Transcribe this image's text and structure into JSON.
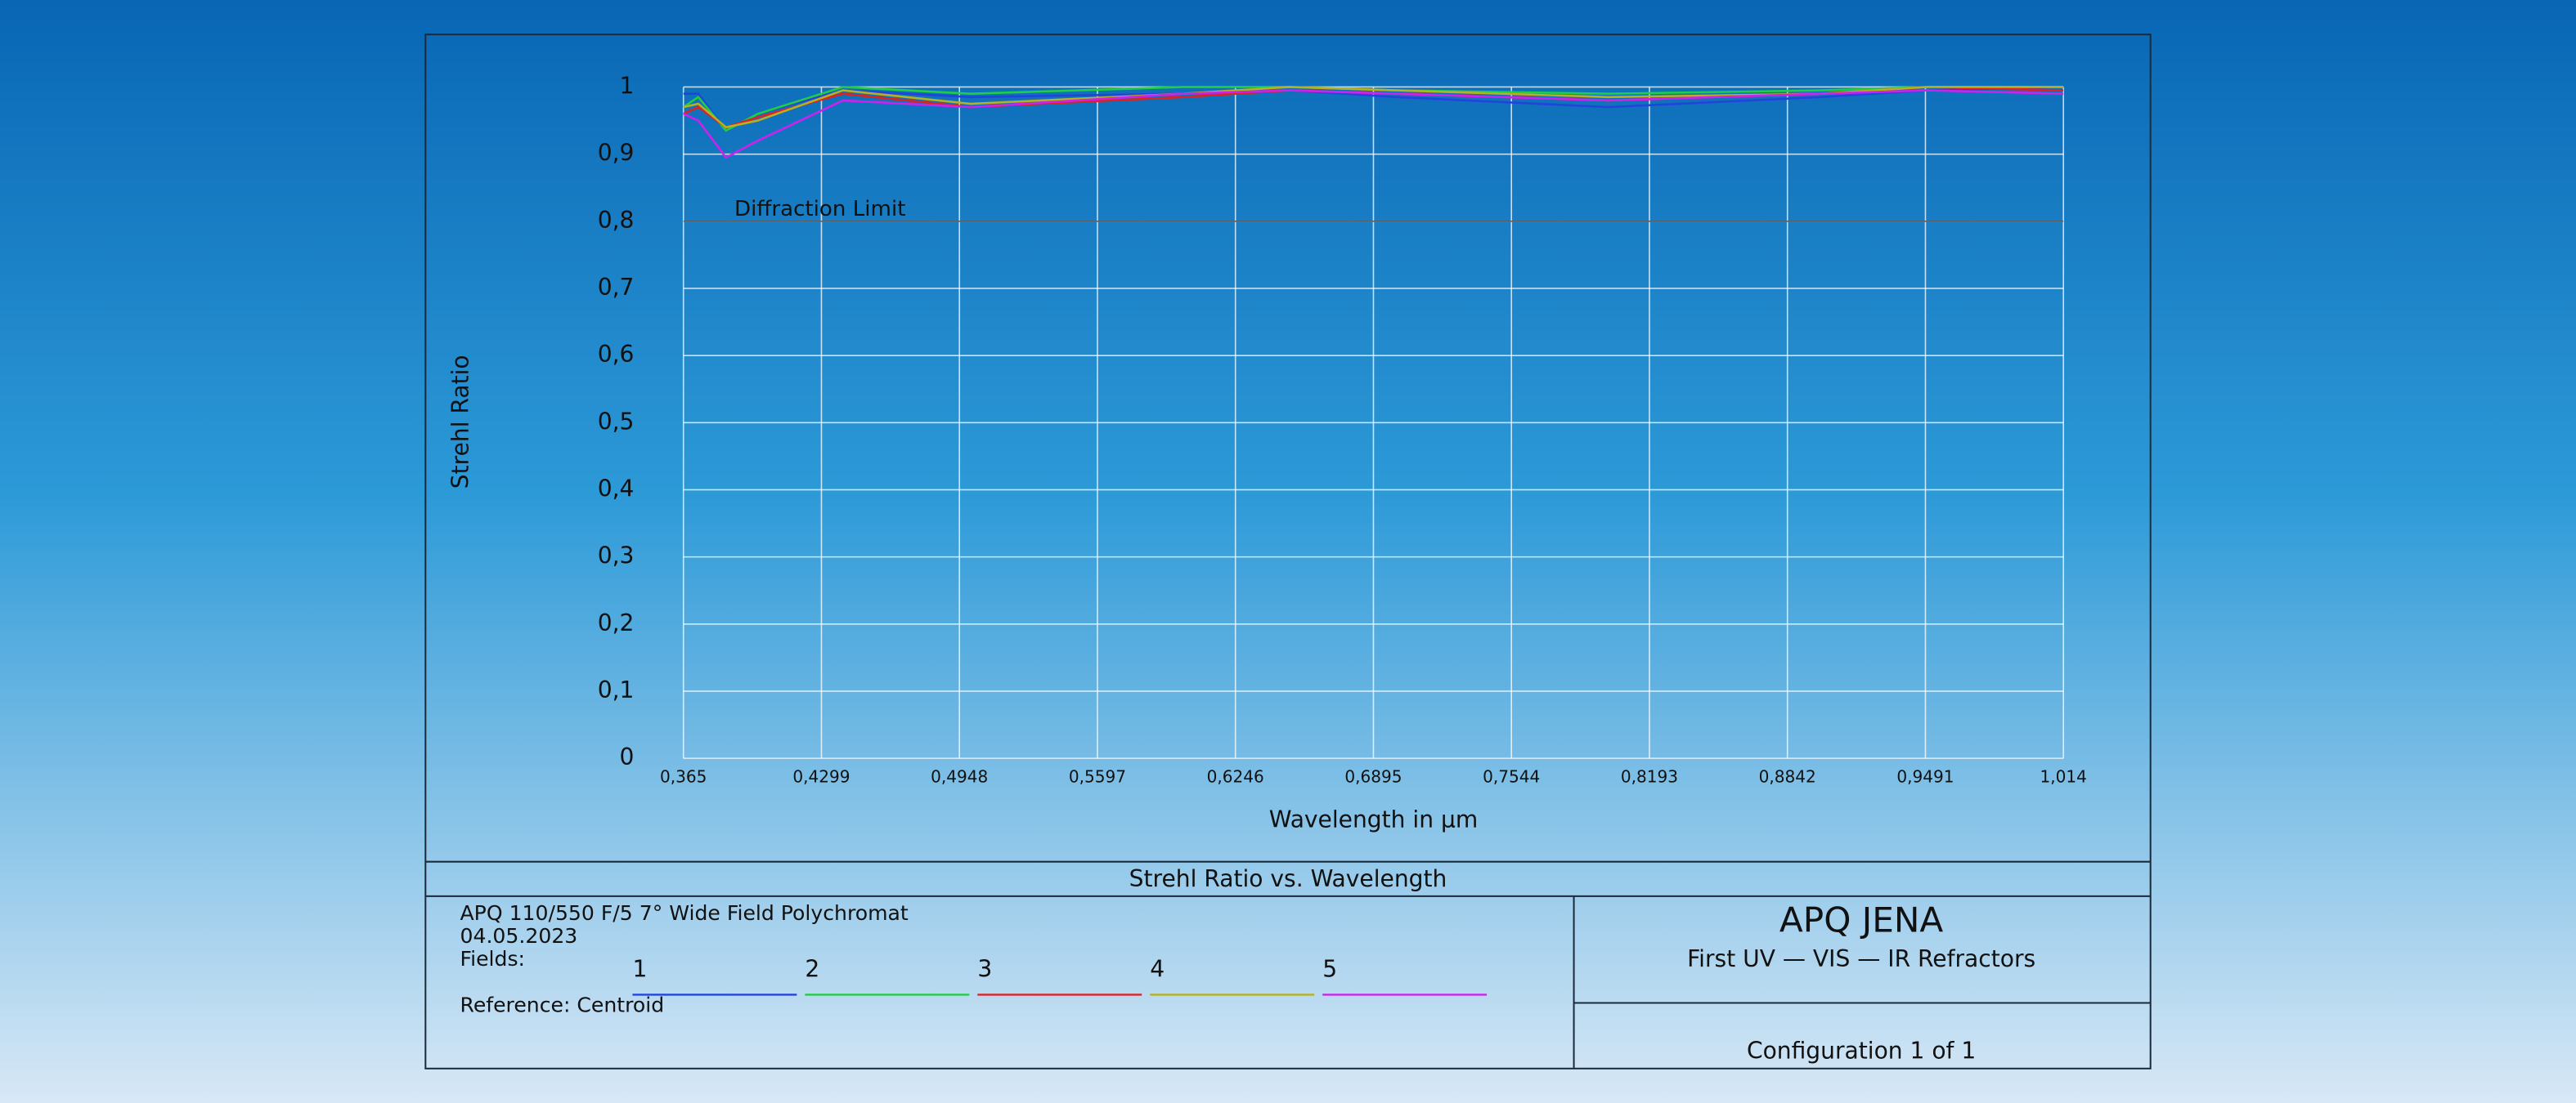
{
  "chart_data": {
    "type": "line",
    "title": "Strehl Ratio vs. Wavelength",
    "x_label": "Wavelength in µm",
    "y_label": "Strehl Ratio",
    "reference_line": {
      "value": 0.8,
      "label": "Diffraction Limit"
    },
    "x": [
      0.365,
      0.372,
      0.385,
      0.4,
      0.44,
      0.5,
      0.6,
      0.65,
      0.7,
      0.8,
      0.9,
      0.95,
      1.014
    ],
    "series": [
      {
        "name": "1",
        "color": "#2244dd",
        "values": [
          0.99,
          0.99,
          0.935,
          0.96,
          0.995,
          0.985,
          0.99,
          0.995,
          0.985,
          0.97,
          0.985,
          0.995,
          1.0
        ]
      },
      {
        "name": "2",
        "color": "#22cc44",
        "values": [
          0.97,
          0.985,
          0.935,
          0.96,
          1.0,
          0.99,
          1.0,
          1.0,
          0.995,
          0.99,
          0.995,
          1.0,
          1.0
        ]
      },
      {
        "name": "3",
        "color": "#dd2222",
        "values": [
          0.96,
          0.97,
          0.94,
          0.955,
          0.99,
          0.97,
          0.985,
          0.995,
          0.99,
          0.98,
          0.99,
          1.0,
          0.995
        ]
      },
      {
        "name": "4",
        "color": "#b8b020",
        "values": [
          0.97,
          0.975,
          0.94,
          0.95,
          0.995,
          0.975,
          0.99,
          1.0,
          0.995,
          0.985,
          0.99,
          1.0,
          1.0
        ]
      },
      {
        "name": "5",
        "color": "#cc22ee",
        "values": [
          0.96,
          0.95,
          0.895,
          0.92,
          0.98,
          0.97,
          0.99,
          0.995,
          0.99,
          0.98,
          0.99,
          0.995,
          0.99
        ]
      }
    ],
    "xlim": [
      0.365,
      1.014
    ],
    "ylim": [
      0,
      1
    ],
    "xticks": [
      {
        "value": 0.365,
        "label": "0,365"
      },
      {
        "value": 0.4299,
        "label": "0,4299"
      },
      {
        "value": 0.4948,
        "label": "0,4948"
      },
      {
        "value": 0.5597,
        "label": "0,5597"
      },
      {
        "value": 0.6246,
        "label": "0,6246"
      },
      {
        "value": 0.6895,
        "label": "0,6895"
      },
      {
        "value": 0.7544,
        "label": "0,7544"
      },
      {
        "value": 0.8193,
        "label": "0,8193"
      },
      {
        "value": 0.8842,
        "label": "0,8842"
      },
      {
        "value": 0.9491,
        "label": "0,9491"
      },
      {
        "value": 1.014,
        "label": "1,014"
      }
    ],
    "yticks": [
      0,
      {
        "value": 0.1,
        "label": "0,1"
      },
      {
        "value": 0.2,
        "label": "0,2"
      },
      {
        "value": 0.3,
        "label": "0,3"
      },
      {
        "value": 0.4,
        "label": "0,4"
      },
      {
        "value": 0.5,
        "label": "0,5"
      },
      {
        "value": 0.6,
        "label": "0,6"
      },
      {
        "value": 0.7,
        "label": "0,7"
      },
      {
        "value": 0.8,
        "label": "0,8"
      },
      {
        "value": 0.9,
        "label": "0,9"
      },
      1
    ],
    "grid": true
  },
  "report": {
    "lines": [
      "APQ 110/550 F/5 7° Wide Field Polychromat",
      "04.05.2023"
    ],
    "fields_label": "Fields:",
    "reference": "Reference: Centroid",
    "company": "APQ JENA",
    "tagline": "First UV — VIS — IR Refractors",
    "configuration": "Configuration 1 of 1"
  }
}
